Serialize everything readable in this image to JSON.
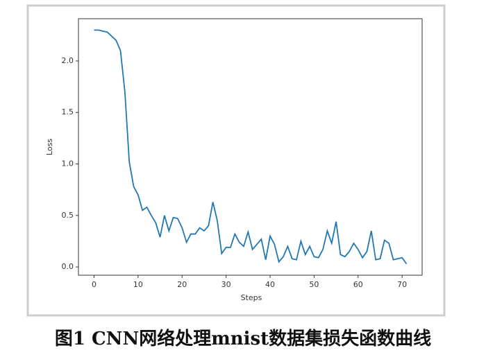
{
  "chart_data": {
    "type": "line",
    "x": [
      0,
      1,
      2,
      3,
      4,
      5,
      6,
      7,
      8,
      9,
      10,
      11,
      12,
      13,
      14,
      15,
      16,
      17,
      18,
      19,
      20,
      21,
      22,
      23,
      24,
      25,
      26,
      27,
      28,
      29,
      30,
      31,
      32,
      33,
      34,
      35,
      36,
      37,
      38,
      39,
      40,
      41,
      42,
      43,
      44,
      45,
      46,
      47,
      48,
      49,
      50,
      51,
      52,
      53,
      54,
      55,
      56,
      57,
      58,
      59,
      60,
      61,
      62,
      63,
      64,
      65,
      66,
      67,
      68,
      69,
      70,
      71
    ],
    "values": [
      2.3,
      2.3,
      2.29,
      2.28,
      2.24,
      2.2,
      2.1,
      1.7,
      1.02,
      0.78,
      0.7,
      0.55,
      0.58,
      0.5,
      0.43,
      0.29,
      0.5,
      0.35,
      0.48,
      0.47,
      0.38,
      0.24,
      0.32,
      0.32,
      0.38,
      0.35,
      0.4,
      0.63,
      0.45,
      0.13,
      0.19,
      0.19,
      0.32,
      0.24,
      0.2,
      0.34,
      0.17,
      0.22,
      0.27,
      0.07,
      0.3,
      0.22,
      0.05,
      0.1,
      0.2,
      0.08,
      0.07,
      0.25,
      0.12,
      0.2,
      0.1,
      0.09,
      0.17,
      0.35,
      0.23,
      0.44,
      0.12,
      0.1,
      0.15,
      0.23,
      0.17,
      0.09,
      0.15,
      0.35,
      0.07,
      0.08,
      0.26,
      0.23,
      0.07,
      0.08,
      0.09,
      0.03
    ],
    "color": "#1f77b4",
    "xlabel": "Steps",
    "ylabel": "Loss",
    "xlim": [
      -3.55,
      74.55
    ],
    "xticks": [
      0,
      10,
      20,
      30,
      40,
      50,
      60,
      70
    ],
    "ylim": [
      -0.08,
      2.41
    ],
    "yticks": [
      {
        "value": 0,
        "label": "0.0"
      },
      {
        "value": 0.5,
        "label": "0.5"
      },
      {
        "value": 1,
        "label": "1.0"
      },
      {
        "value": 1.5,
        "label": "1.5"
      },
      {
        "value": 2,
        "label": "2.0"
      }
    ],
    "caption": "图1 CNN网络处理mnist数据集损失函数曲线"
  }
}
